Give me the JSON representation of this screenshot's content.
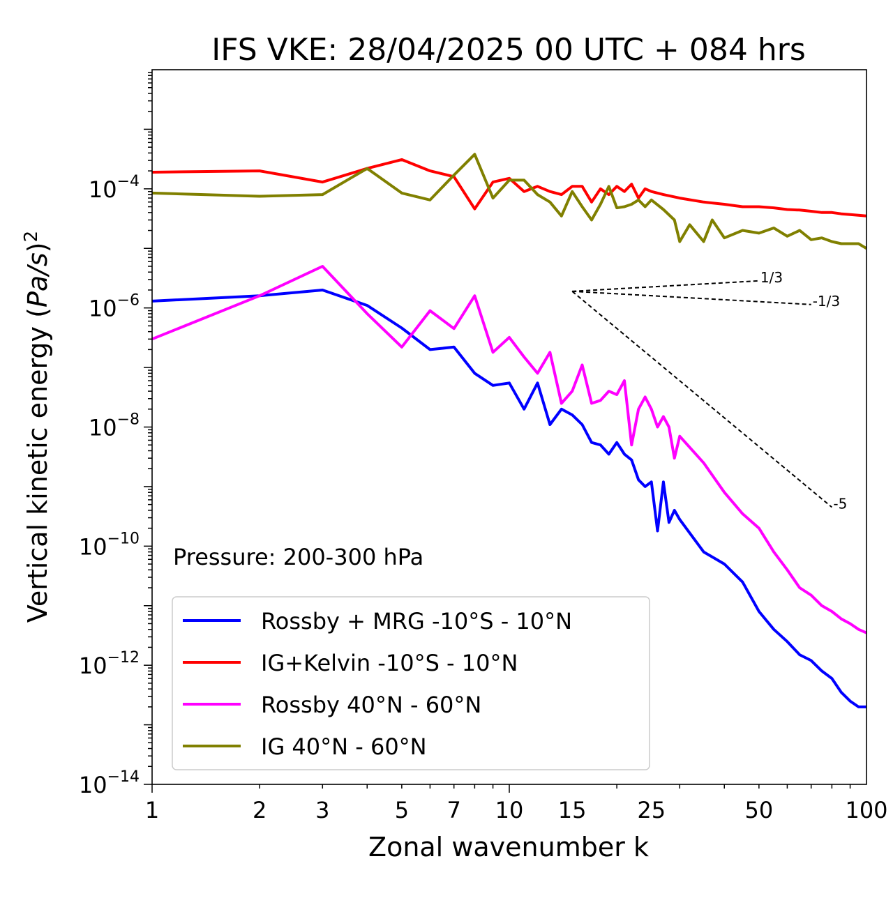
{
  "chart_data": {
    "type": "line",
    "title": "IFS VKE: 28/04/2025 00 UTC + 084 hrs",
    "xlabel": "Zonal wavenumber k",
    "ylabel": "Vertical kinetic energy (Pa/s)²",
    "xscale": "log",
    "yscale": "log",
    "xlim": [
      1,
      100
    ],
    "ylim": [
      1e-14,
      0.01
    ],
    "x_ticks": [
      1,
      2,
      3,
      5,
      7,
      10,
      15,
      25,
      50,
      100
    ],
    "x_tick_labels": [
      "1",
      "2",
      "3",
      "5",
      "7",
      "10",
      "15",
      "25",
      "50",
      "100"
    ],
    "y_tick_exponents": [
      -14,
      -12,
      -10,
      -8,
      -6,
      -4
    ],
    "annotation": "Pressure: 200-300 hPa",
    "legend_position": "lower-left",
    "grid": false,
    "series": [
      {
        "name": "Rossby + MRG -10°S - 10°N",
        "color": "#0000ff",
        "x": [
          1,
          2,
          3,
          4,
          5,
          6,
          7,
          8,
          9,
          10,
          11,
          12,
          13,
          14,
          15,
          16,
          17,
          18,
          19,
          20,
          21,
          22,
          23,
          24,
          25,
          26,
          27,
          28,
          29,
          30,
          35,
          40,
          45,
          50,
          55,
          60,
          65,
          70,
          75,
          80,
          85,
          90,
          95,
          100
        ],
        "y": [
          1.3e-06,
          1.6e-06,
          2e-06,
          1.1e-06,
          4.6e-07,
          2e-07,
          2.2e-07,
          8e-08,
          5e-08,
          5.5e-08,
          2e-08,
          5.5e-08,
          1.1e-08,
          2e-08,
          1.6e-08,
          1.1e-08,
          5.5e-09,
          5e-09,
          3.5e-09,
          5.5e-09,
          3.5e-09,
          2.8e-09,
          1.3e-09,
          1e-09,
          1.2e-09,
          1.8e-10,
          1.2e-09,
          2.5e-10,
          4e-10,
          2.8e-10,
          8e-11,
          5e-11,
          2.5e-11,
          8e-12,
          4e-12,
          2.5e-12,
          1.5e-12,
          1.2e-12,
          8e-13,
          6e-13,
          3.5e-13,
          2.5e-13,
          2e-13,
          2e-13
        ]
      },
      {
        "name": "IG+Kelvin -10°S - 10°N",
        "color": "#ff0000",
        "x": [
          1,
          2,
          3,
          4,
          5,
          6,
          7,
          8,
          9,
          10,
          11,
          12,
          13,
          14,
          15,
          16,
          17,
          18,
          19,
          20,
          21,
          22,
          23,
          24,
          25,
          27,
          30,
          35,
          40,
          45,
          50,
          55,
          60,
          65,
          70,
          75,
          80,
          85,
          90,
          95,
          100
        ],
        "y": [
          0.00019,
          0.0002,
          0.00013,
          0.00022,
          0.00031,
          0.0002,
          0.00016,
          4.6e-05,
          0.00013,
          0.00015,
          9e-05,
          0.00011,
          9e-05,
          8e-05,
          0.00011,
          0.00011,
          6e-05,
          0.0001,
          8e-05,
          0.00011,
          9e-05,
          0.00012,
          7e-05,
          0.0001,
          9e-05,
          8e-05,
          7e-05,
          6e-05,
          5.5e-05,
          5e-05,
          5e-05,
          4.8e-05,
          4.5e-05,
          4.4e-05,
          4.2e-05,
          4e-05,
          4e-05,
          3.8e-05,
          3.7e-05,
          3.6e-05,
          3.5e-05
        ]
      },
      {
        "name": "Rossby 40°N - 60°N",
        "color": "#ff00ff",
        "x": [
          1,
          2,
          3,
          4,
          5,
          6,
          7,
          8,
          9,
          10,
          11,
          12,
          13,
          14,
          15,
          16,
          17,
          18,
          19,
          20,
          21,
          22,
          23,
          24,
          25,
          26,
          27,
          28,
          29,
          30,
          35,
          40,
          45,
          50,
          55,
          60,
          65,
          70,
          75,
          80,
          85,
          90,
          95,
          100
        ],
        "y": [
          3e-07,
          1.6e-06,
          5e-06,
          8e-07,
          2.2e-07,
          9e-07,
          4.5e-07,
          1.6e-06,
          1.8e-07,
          3.2e-07,
          1.5e-07,
          8e-08,
          1.8e-07,
          2.5e-08,
          4e-08,
          1.1e-07,
          2.5e-08,
          2.8e-08,
          4e-08,
          3.5e-08,
          6e-08,
          5e-09,
          2e-08,
          3.2e-08,
          2e-08,
          1e-08,
          1.5e-08,
          1e-08,
          3e-09,
          7e-09,
          2.5e-09,
          8e-10,
          3.5e-10,
          2e-10,
          8e-11,
          4e-11,
          2e-11,
          1.5e-11,
          1e-11,
          8e-12,
          6e-12,
          5e-12,
          4e-12,
          3.5e-12
        ]
      },
      {
        "name": "IG 40°N - 60°N",
        "color": "#808000",
        "x": [
          1,
          2,
          3,
          4,
          5,
          6,
          7,
          8,
          9,
          10,
          11,
          12,
          13,
          14,
          15,
          16,
          17,
          18,
          19,
          20,
          21,
          22,
          23,
          24,
          25,
          27,
          29,
          30,
          32,
          35,
          37,
          40,
          45,
          50,
          55,
          60,
          65,
          70,
          75,
          80,
          85,
          90,
          95,
          100
        ],
        "y": [
          8.5e-05,
          7.5e-05,
          8e-05,
          0.00022,
          8.5e-05,
          6.5e-05,
          0.00017,
          0.00038,
          7e-05,
          0.00014,
          0.00014,
          8e-05,
          6e-05,
          3.5e-05,
          9e-05,
          5e-05,
          3e-05,
          5.5e-05,
          0.00011,
          4.8e-05,
          5e-05,
          5.5e-05,
          6.5e-05,
          5e-05,
          6.5e-05,
          4.5e-05,
          3e-05,
          1.3e-05,
          2.5e-05,
          1.3e-05,
          3e-05,
          1.5e-05,
          2e-05,
          1.8e-05,
          2.2e-05,
          1.6e-05,
          2e-05,
          1.4e-05,
          1.5e-05,
          1.3e-05,
          1.2e-05,
          1.2e-05,
          1.2e-05,
          1e-05
        ]
      }
    ],
    "reference_lines": [
      {
        "slope_label": "1/3",
        "x": [
          15,
          50
        ],
        "y": [
          1.9e-06,
          2.85e-06
        ]
      },
      {
        "slope_label": "-1/3",
        "x": [
          15,
          70
        ],
        "y": [
          1.9e-06,
          1.14e-06
        ]
      },
      {
        "slope_label": "-5",
        "x": [
          15,
          80
        ],
        "y": [
          1.9e-06,
          4.5e-10
        ]
      }
    ]
  }
}
